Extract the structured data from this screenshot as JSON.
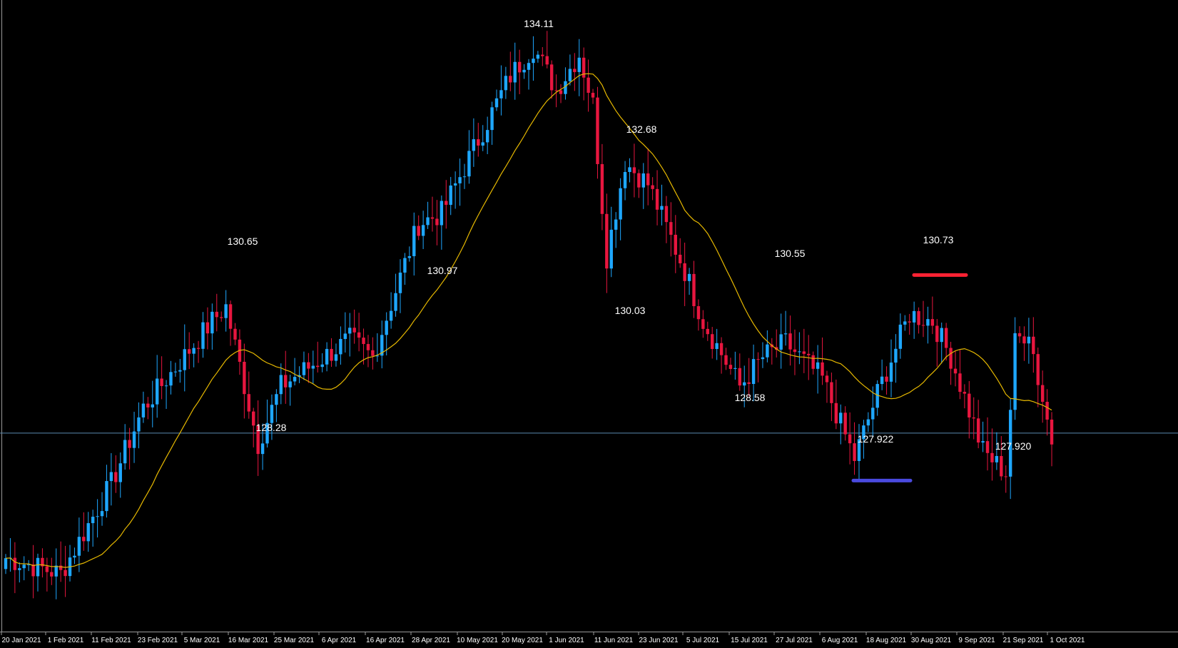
{
  "chart_data": {
    "type": "candlestick",
    "x_axis": {
      "tick_labels": [
        "20 Jan 2021",
        "1 Feb 2021",
        "11 Feb 2021",
        "23 Feb 2021",
        "5 Mar 2021",
        "16 Mar 2021",
        "25 Mar 2021",
        "6 Apr 2021",
        "16 Apr 2021",
        "28 Apr 2021",
        "10 May 2021",
        "20 May 2021",
        "1 Jun 2021",
        "11 Jun 2021",
        "23 Jun 2021",
        "5 Jul 2021",
        "15 Jul 2021",
        "27 Jul 2021",
        "6 Aug 2021",
        "18 Aug 2021",
        "30 Aug 2021",
        "9 Sep 2021",
        "21 Sep 2021",
        "1 Oct 2021"
      ]
    },
    "y_axis": {
      "range": [
        125.8,
        134.55
      ]
    },
    "grid": false,
    "reference_line": {
      "value": 128.55,
      "color": "#5a8ab0"
    },
    "colors": {
      "background": "#000000",
      "up_candle": "#1ea7ff",
      "down_candle": "#e8163f",
      "moving_average": "#e6b800",
      "label_text": "#ffffff",
      "resistance_marker": "#ff2233",
      "support_marker": "#4a4adf"
    },
    "annotations": [
      {
        "label": "134.11",
        "value": 134.11
      },
      {
        "label": "130.65",
        "value": 130.65
      },
      {
        "label": "128.28",
        "value": 128.28
      },
      {
        "label": "130.97",
        "value": 130.97
      },
      {
        "label": "132.68",
        "value": 132.68
      },
      {
        "label": "130.03",
        "value": 130.03
      },
      {
        "label": "130.55",
        "value": 130.55
      },
      {
        "label": "128.58",
        "value": 128.58
      },
      {
        "label": "130.73",
        "value": 130.73
      },
      {
        "label": "127.922",
        "value": 127.922
      },
      {
        "label": "127.920",
        "value": 127.92
      }
    ],
    "markers": [
      {
        "type": "resistance",
        "value": 130.73
      },
      {
        "type": "support",
        "value": 127.922
      }
    ],
    "anchors": [
      [
        0,
        126.82
      ],
      [
        12,
        126.6
      ],
      [
        23,
        127.85
      ],
      [
        30,
        128.9
      ],
      [
        45,
        130.1
      ],
      [
        48,
        130.3
      ],
      [
        55,
        128.4
      ],
      [
        60,
        129.2
      ],
      [
        75,
        129.85
      ],
      [
        80,
        129.6
      ],
      [
        90,
        131.45
      ],
      [
        95,
        131.6
      ],
      [
        110,
        133.5
      ],
      [
        115,
        133.9
      ],
      [
        120,
        133.3
      ],
      [
        125,
        133.8
      ],
      [
        128,
        133.1
      ],
      [
        131,
        131.0
      ],
      [
        135,
        132.3
      ],
      [
        140,
        132.0
      ],
      [
        148,
        130.8
      ],
      [
        152,
        130.1
      ],
      [
        160,
        129.2
      ],
      [
        165,
        129.6
      ],
      [
        170,
        129.8
      ],
      [
        178,
        129.3
      ],
      [
        185,
        128.2
      ],
      [
        190,
        129.1
      ],
      [
        197,
        130.2
      ],
      [
        202,
        130.1
      ],
      [
        206,
        129.6
      ],
      [
        213,
        128.3
      ],
      [
        218,
        128.0
      ],
      [
        220,
        129.8
      ],
      [
        223,
        130.0
      ],
      [
        225,
        129.3
      ],
      [
        228,
        128.45
      ]
    ]
  }
}
